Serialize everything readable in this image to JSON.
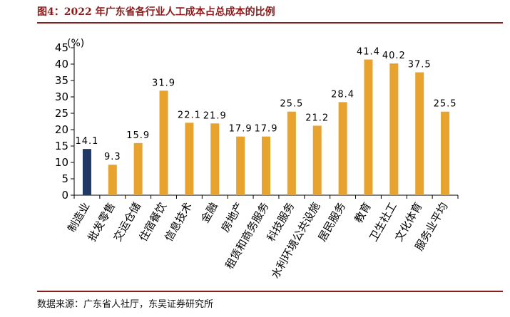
{
  "header": {
    "title": "图4：2022 年广东省各行业人工成本占总成本的比例"
  },
  "footer": {
    "source": "数据来源：广东省人社厅，东吴证券研究所"
  },
  "colors": {
    "highlight": "#1F3864",
    "bars": "#E8A32E",
    "rule": "#8B1A1A",
    "axis": "#000000"
  },
  "chart_data": {
    "type": "bar",
    "title": "2022 年广东省各行业人工成本占总成本的比例",
    "xlabel": "",
    "ylabel": "(%)",
    "ylim": [
      0,
      45
    ],
    "yticks": [
      0,
      5,
      10,
      15,
      20,
      25,
      30,
      35,
      40,
      45
    ],
    "grid": false,
    "legend": "none",
    "categories": [
      "制造业",
      "批发零售",
      "交运仓储",
      "住宿餐饮",
      "信息技术",
      "金融",
      "房地产",
      "租赁和商务服务",
      "科技服务",
      "水利环境公共设施",
      "居民服务",
      "教育",
      "卫生社工",
      "文化体育",
      "服务业平均"
    ],
    "values": [
      14.1,
      9.3,
      15.9,
      31.9,
      22.1,
      21.9,
      17.9,
      17.9,
      25.5,
      21.2,
      28.4,
      41.4,
      40.2,
      37.5,
      25.5
    ],
    "value_labels": [
      "14.1",
      "9.3",
      "15.9",
      "31.9",
      "22.1",
      "21.9",
      "17.9",
      "17.9",
      "25.5",
      "21.2",
      "28.4",
      "41.4",
      "40.2",
      "37.5",
      "25.5"
    ],
    "highlight_index": 0
  }
}
